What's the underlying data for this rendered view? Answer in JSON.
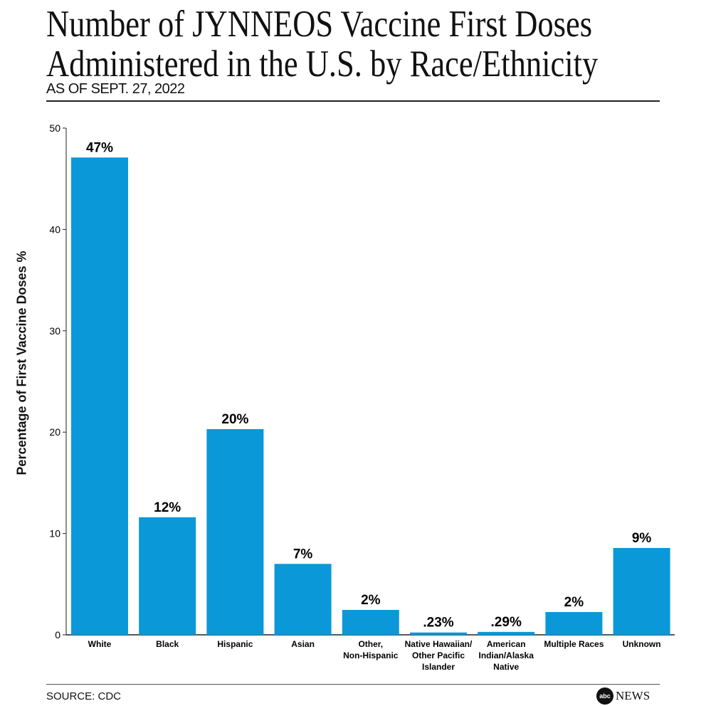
{
  "header": {
    "title_line1": "Number of JYNNEOS Vaccine First Doses",
    "title_line2": "Administered in the U.S. by Race/Ethnicity",
    "subtitle": "AS OF SEPT. 27, 2022"
  },
  "footer": {
    "source": "SOURCE: CDC",
    "logo_abc": "abc",
    "logo_news": "NEWS"
  },
  "chart_data": {
    "type": "bar",
    "title": "Number of JYNNEOS Vaccine First Doses Administered in the U.S. by Race/Ethnicity",
    "xlabel": "",
    "ylabel": "Percentage of First Vaccine Doses %",
    "ylim": [
      0,
      50
    ],
    "yticks": [
      0,
      10,
      20,
      30,
      40,
      50
    ],
    "categories": [
      [
        "White"
      ],
      [
        "Black"
      ],
      [
        "Hispanic"
      ],
      [
        "Asian"
      ],
      [
        "Other,",
        "Non-Hispanic"
      ],
      [
        "Native Hawaiian/",
        "Other Pacific",
        "Islander"
      ],
      [
        "American",
        "Indian/Alaska",
        "Native"
      ],
      [
        "Multiple Races"
      ],
      [
        "Unknown"
      ]
    ],
    "values": [
      47.1,
      11.6,
      20.3,
      7.0,
      2.46,
      0.23,
      0.29,
      2.25,
      8.57
    ],
    "labels": [
      "47%",
      "12%",
      "20%",
      "7%",
      "2%",
      ".23%",
      ".29%",
      "2%",
      "9%"
    ],
    "bar_color": "#0a98d9"
  }
}
